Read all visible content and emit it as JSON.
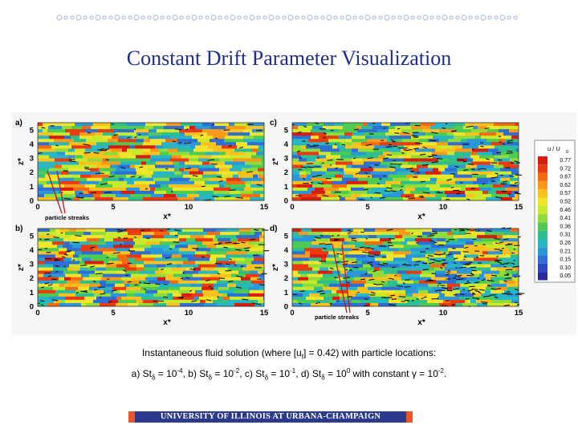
{
  "title": "Constant Drift Parameter Visualization",
  "caption": {
    "line1": {
      "pre": "Instantaneous fluid solution (where [u",
      "sub": "f",
      "post": "] = 0.42) with particle locations:"
    },
    "line2": [
      {
        "t": "a) St"
      },
      {
        "sub": "δ"
      },
      {
        "t": " = 10"
      },
      {
        "sup": "-4"
      },
      {
        "t": ", b) St"
      },
      {
        "sub": "δ"
      },
      {
        "t": " = 10"
      },
      {
        "sup": "-2"
      },
      {
        "t": ", c) St"
      },
      {
        "sub": "δ"
      },
      {
        "t": " = 10"
      },
      {
        "sup": "-1"
      },
      {
        "t": ", d) St"
      },
      {
        "sub": "δ"
      },
      {
        "t": " = 10"
      },
      {
        "sup": "0"
      },
      {
        "t": " with constant γ = 10"
      },
      {
        "sup": "-2"
      },
      {
        "t": "."
      }
    ]
  },
  "footer": "UNIVERSITY OF ILLINOIS AT URBANA-CHAMPAIGN",
  "figure": {
    "panels": [
      {
        "label": "a)",
        "annotation": "particle streaks"
      },
      {
        "label": "b)",
        "annotation": ""
      },
      {
        "label": "c)",
        "annotation": ""
      },
      {
        "label": "d)",
        "annotation": "particle streaks"
      }
    ],
    "xlabel": "x*",
    "ylabel": "z*",
    "xticks": [
      "0",
      "5",
      "10",
      "15"
    ],
    "yticks": [
      "0",
      "1",
      "2",
      "3",
      "4",
      "5"
    ],
    "colorbar": {
      "title": "u / U",
      "title_sub": "0",
      "levels": [
        "0.77",
        "0.72",
        "0.67",
        "0.62",
        "0.57",
        "0.52",
        "0.46",
        "0.41",
        "0.36",
        "0.31",
        "0.26",
        "0.21",
        "0.15",
        "0.10",
        "0.05"
      ],
      "colors": [
        "#d81c10",
        "#ec3a10",
        "#f66a12",
        "#fb9a18",
        "#fbc21f",
        "#f2e42a",
        "#c9ea2a",
        "#8fdc3a",
        "#4fcb52",
        "#2fbf8f",
        "#28b6c4",
        "#2a97d8",
        "#2e6fd6",
        "#2d47c0",
        "#2a2aa0"
      ]
    }
  }
}
